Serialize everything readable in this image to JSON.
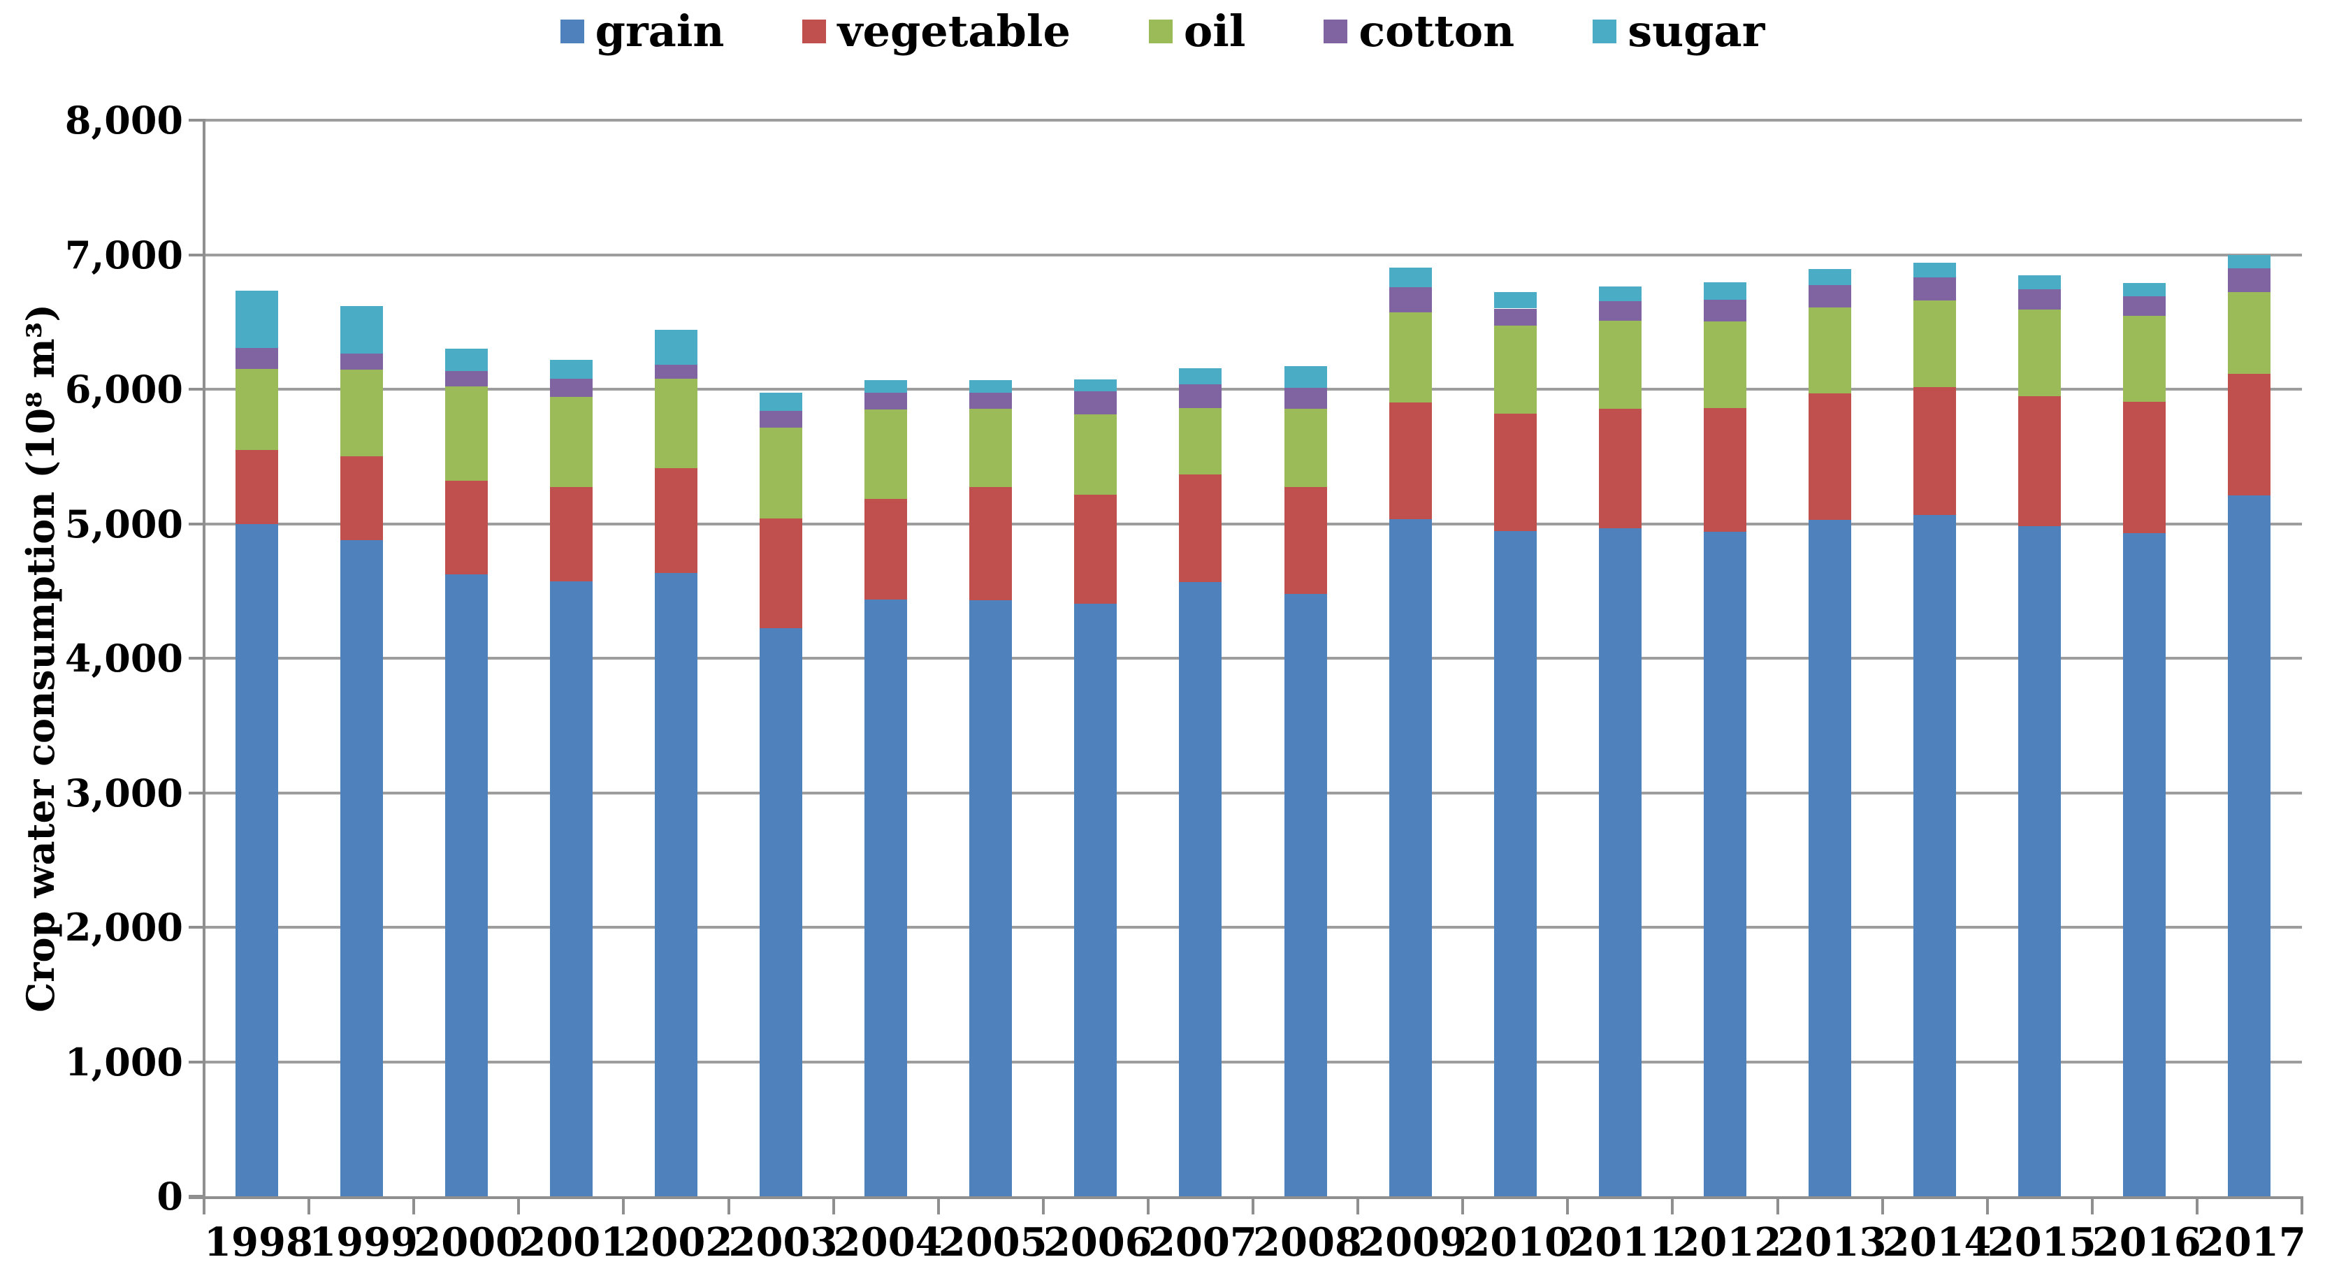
{
  "page": {
    "background": "#FFFFFF"
  },
  "legend": {
    "position": "top",
    "items": [
      {
        "key": "grain",
        "label": "grain",
        "color": "#4F81BD"
      },
      {
        "key": "vegetable",
        "label": "vegetable",
        "color": "#C0504D"
      },
      {
        "key": "oil",
        "label": "oil",
        "color": "#9BBB59"
      },
      {
        "key": "cotton",
        "label": "cotton",
        "color": "#8064A2"
      },
      {
        "key": "sugar",
        "label": "sugar",
        "color": "#4BACC6"
      }
    ]
  },
  "y_axis": {
    "title": "Crop water consumption (10⁸ m³)",
    "tick_labels": [
      "0",
      "1,000",
      "2,000",
      "3,000",
      "4,000",
      "5,000",
      "6,000",
      "7,000",
      "8,000"
    ],
    "tick_values": [
      0,
      1000,
      2000,
      3000,
      4000,
      5000,
      6000,
      7000,
      8000
    ]
  },
  "x_axis": {
    "tick_labels": [
      "1998",
      "1999",
      "2000",
      "2001",
      "2002",
      "2003",
      "2004",
      "2005",
      "2006",
      "2007",
      "2008",
      "2009",
      "2010",
      "2011",
      "2012",
      "2013",
      "2014",
      "2015",
      "2016",
      "2017"
    ]
  },
  "colors": {
    "grid": "#9D9D9D",
    "axis": "#8F8F8F",
    "text": "#000000"
  },
  "chart_data": {
    "type": "bar",
    "stacked": true,
    "title": "",
    "xlabel": "",
    "ylabel": "Crop water consumption (10⁸ m³)",
    "ylim": [
      0,
      8000
    ],
    "ytick_interval": 1000,
    "grid": true,
    "legend_position": "top",
    "categories": [
      1998,
      1999,
      2000,
      2001,
      2002,
      2003,
      2004,
      2005,
      2006,
      2007,
      2008,
      2009,
      2010,
      2011,
      2012,
      2013,
      2014,
      2015,
      2016,
      2017
    ],
    "series": [
      {
        "name": "grain",
        "color": "#4F81BD",
        "values": [
          4995,
          4880,
          4625,
          4570,
          4635,
          4225,
          4435,
          4430,
          4405,
          4565,
          4480,
          5035,
          4945,
          4965,
          4940,
          5030,
          5065,
          4980,
          4930,
          5210
        ]
      },
      {
        "name": "vegetable",
        "color": "#C0504D",
        "values": [
          555,
          620,
          695,
          705,
          780,
          815,
          750,
          845,
          810,
          800,
          795,
          865,
          875,
          890,
          920,
          940,
          950,
          970,
          975,
          905
        ]
      },
      {
        "name": "oil",
        "color": "#9BBB59",
        "values": [
          600,
          645,
          700,
          670,
          665,
          675,
          665,
          580,
          600,
          495,
          580,
          670,
          655,
          655,
          645,
          640,
          645,
          640,
          640,
          605
        ]
      },
      {
        "name": "cotton",
        "color": "#8064A2",
        "values": [
          155,
          120,
          115,
          135,
          100,
          125,
          125,
          120,
          170,
          175,
          155,
          190,
          125,
          145,
          160,
          165,
          170,
          155,
          145,
          180
        ]
      },
      {
        "name": "sugar",
        "color": "#4BACC6",
        "values": [
          425,
          355,
          165,
          140,
          260,
          135,
          95,
          95,
          90,
          120,
          160,
          145,
          120,
          110,
          130,
          120,
          110,
          100,
          100,
          100
        ]
      }
    ],
    "totals": [
      6730,
      6620,
      6300,
      6220,
      6440,
      5975,
      6070,
      6070,
      6075,
      6155,
      6170,
      6905,
      6720,
      6765,
      6795,
      6895,
      6940,
      6845,
      6790,
      7000
    ]
  }
}
